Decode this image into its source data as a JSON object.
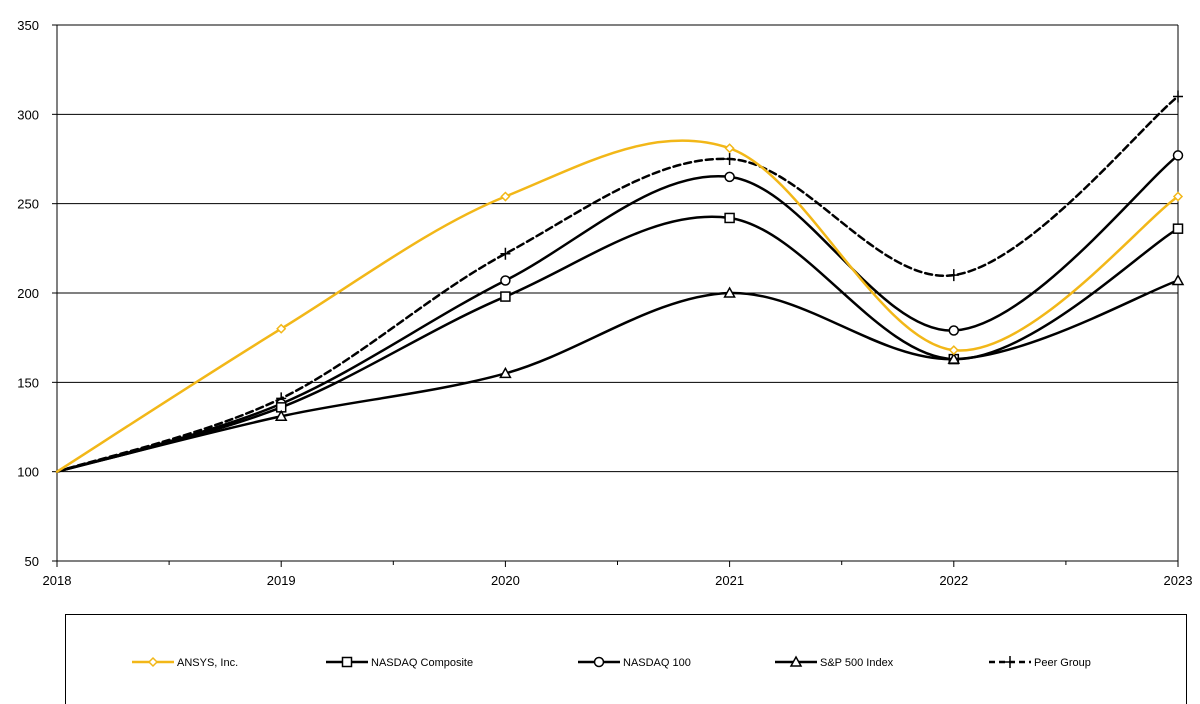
{
  "chart_data": {
    "type": "line",
    "title": "",
    "xlabel": "",
    "ylabel": "",
    "x": [
      2018,
      2019,
      2020,
      2021,
      2022,
      2023
    ],
    "xlim": [
      2018,
      2023
    ],
    "ylim": [
      50,
      350
    ],
    "yticks": [
      50,
      100,
      150,
      200,
      250,
      300,
      350
    ],
    "grid": "horizontal",
    "legend_position": "bottom",
    "series": [
      {
        "name": "ANSYS, Inc.",
        "values": [
          100,
          180,
          254,
          281,
          168,
          254
        ],
        "color": "#F2B718",
        "marker": "diamond",
        "dash": "solid"
      },
      {
        "name": "NASDAQ Composite",
        "values": [
          100,
          136,
          198,
          242,
          163,
          236
        ],
        "color": "#000000",
        "marker": "square",
        "dash": "solid"
      },
      {
        "name": "NASDAQ 100",
        "values": [
          100,
          138,
          207,
          265,
          179,
          277
        ],
        "color": "#000000",
        "marker": "circle",
        "dash": "solid"
      },
      {
        "name": "S&P 500 Index",
        "values": [
          100,
          131,
          155,
          200,
          163,
          207
        ],
        "color": "#000000",
        "marker": "triangle",
        "dash": "solid"
      },
      {
        "name": "Peer Group",
        "values": [
          100,
          141,
          222,
          275,
          210,
          310
        ],
        "color": "#000000",
        "marker": "plus",
        "dash": "dashed"
      }
    ]
  }
}
